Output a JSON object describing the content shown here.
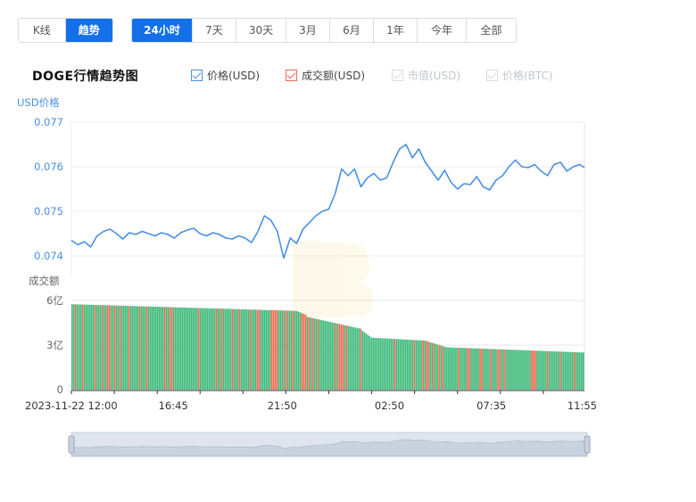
{
  "toolbar": {
    "modes": [
      {
        "label": "K线",
        "active": false
      },
      {
        "label": "趋势",
        "active": true
      }
    ],
    "ranges": [
      {
        "label": "24小时",
        "active": true
      },
      {
        "label": "7天",
        "active": false
      },
      {
        "label": "30天",
        "active": false
      },
      {
        "label": "3月",
        "active": false
      },
      {
        "label": "6月",
        "active": false
      },
      {
        "label": "1年",
        "active": false
      },
      {
        "label": "今年",
        "active": false
      },
      {
        "label": "全部",
        "active": false
      }
    ]
  },
  "legend": {
    "price_usd": {
      "label": "价格(USD)",
      "checked": true
    },
    "volume_usd": {
      "label": "成交额(USD)",
      "checked": true
    },
    "market_cap_usd": {
      "label": "市值(USD)",
      "checked": false
    },
    "price_btc": {
      "label": "价格(BTC)",
      "checked": false
    }
  },
  "colors": {
    "price_line": "#4a90e2",
    "volume_up": "#3cb97a",
    "volume_down": "#ee6a50",
    "accent": "#1470e8",
    "axis_label_blue": "#4a90e2",
    "axis_label_gray": "#666666"
  },
  "chart_data": {
    "type": "line",
    "title": "DOGE行情趋势图",
    "price_axis_label": "USD价格",
    "volume_axis_label": "成交额",
    "price_ticks": [
      "0.077",
      "0.076",
      "0.075",
      "0.074"
    ],
    "price_ylim": [
      0.0735,
      0.077
    ],
    "volume_ticks": [
      "6亿",
      "3亿",
      "0"
    ],
    "volume_ylim": [
      0,
      6
    ],
    "x_tick_labels": [
      "2023-11-22 12:00",
      "16:45",
      "21:50",
      "02:50",
      "07:35",
      "11:55"
    ],
    "price_series": {
      "name": "价格(USD)",
      "x": [
        0,
        0.3,
        0.6,
        0.9,
        1.2,
        1.5,
        1.8,
        2.1,
        2.4,
        2.7,
        3.0,
        3.3,
        3.6,
        3.9,
        4.2,
        4.5,
        4.8,
        5.1,
        5.4,
        5.7,
        6.0,
        6.3,
        6.6,
        6.9,
        7.2,
        7.5,
        7.8,
        8.1,
        8.4,
        8.7,
        9.0,
        9.3,
        9.6,
        9.9,
        10.2,
        10.5,
        10.8,
        11.1,
        11.4,
        11.7,
        12.0,
        12.3,
        12.6,
        12.9,
        13.2,
        13.5,
        13.8,
        14.1,
        14.4,
        14.7,
        15.0,
        15.3,
        15.6,
        15.9,
        16.2,
        16.5,
        16.8,
        17.1,
        17.4,
        17.7,
        18.0,
        18.3,
        18.6,
        18.9,
        19.2,
        19.5,
        19.8,
        20.1,
        20.4,
        20.7,
        21.0,
        21.3,
        21.6,
        21.9,
        22.2,
        22.5,
        22.8,
        23.1,
        23.4,
        23.7,
        23.92
      ],
      "values": [
        0.07435,
        0.07425,
        0.07432,
        0.0742,
        0.07445,
        0.07455,
        0.0746,
        0.0745,
        0.07438,
        0.07452,
        0.07448,
        0.07455,
        0.0745,
        0.07445,
        0.07452,
        0.07448,
        0.0744,
        0.07452,
        0.07458,
        0.07462,
        0.0745,
        0.07445,
        0.07452,
        0.07448,
        0.0744,
        0.07438,
        0.07445,
        0.0744,
        0.0743,
        0.07455,
        0.0749,
        0.0748,
        0.07455,
        0.07395,
        0.0744,
        0.07428,
        0.0746,
        0.07475,
        0.0749,
        0.075,
        0.07505,
        0.0754,
        0.07595,
        0.0758,
        0.07595,
        0.07555,
        0.07575,
        0.07585,
        0.0757,
        0.07575,
        0.0761,
        0.0764,
        0.0765,
        0.0762,
        0.0764,
        0.0761,
        0.0759,
        0.0757,
        0.07592,
        0.07565,
        0.0755,
        0.07562,
        0.0756,
        0.07578,
        0.07555,
        0.07548,
        0.0757,
        0.0758,
        0.076,
        0.07615,
        0.076,
        0.07598,
        0.07605,
        0.0759,
        0.0758,
        0.07605,
        0.0761,
        0.0759,
        0.076,
        0.07605,
        0.07598
      ]
    },
    "volume_series": {
      "name": "成交额(USD)",
      "unit": "亿",
      "segments": [
        {
          "from": 0,
          "to": 10.5,
          "start": 5.75,
          "end": 5.3
        },
        {
          "from": 10.5,
          "to": 11.0,
          "start": 5.3,
          "end": 5.0
        },
        {
          "from": 11.0,
          "to": 13.5,
          "start": 4.9,
          "end": 4.1
        },
        {
          "from": 13.5,
          "to": 14.0,
          "start": 4.05,
          "end": 3.5
        },
        {
          "from": 14.0,
          "to": 16.5,
          "start": 3.5,
          "end": 3.3
        },
        {
          "from": 16.5,
          "to": 17.5,
          "start": 3.3,
          "end": 2.85
        },
        {
          "from": 17.5,
          "to": 23.92,
          "start": 2.85,
          "end": 2.5
        }
      ],
      "down_bar_ratio": 0.22
    }
  },
  "zoom": {
    "start_percent": 0,
    "end_percent": 100
  }
}
